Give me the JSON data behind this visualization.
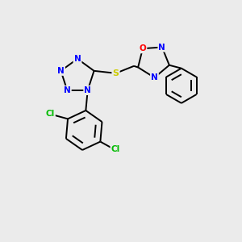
{
  "background_color": "#ebebeb",
  "atom_colors": {
    "N": "#0000ff",
    "O": "#ff0000",
    "S": "#cccc00",
    "Cl": "#00bb00",
    "C": "#000000"
  },
  "bond_lw": 1.4,
  "font_size": 7.5,
  "xlim": [
    0,
    10
  ],
  "ylim": [
    0,
    10
  ]
}
